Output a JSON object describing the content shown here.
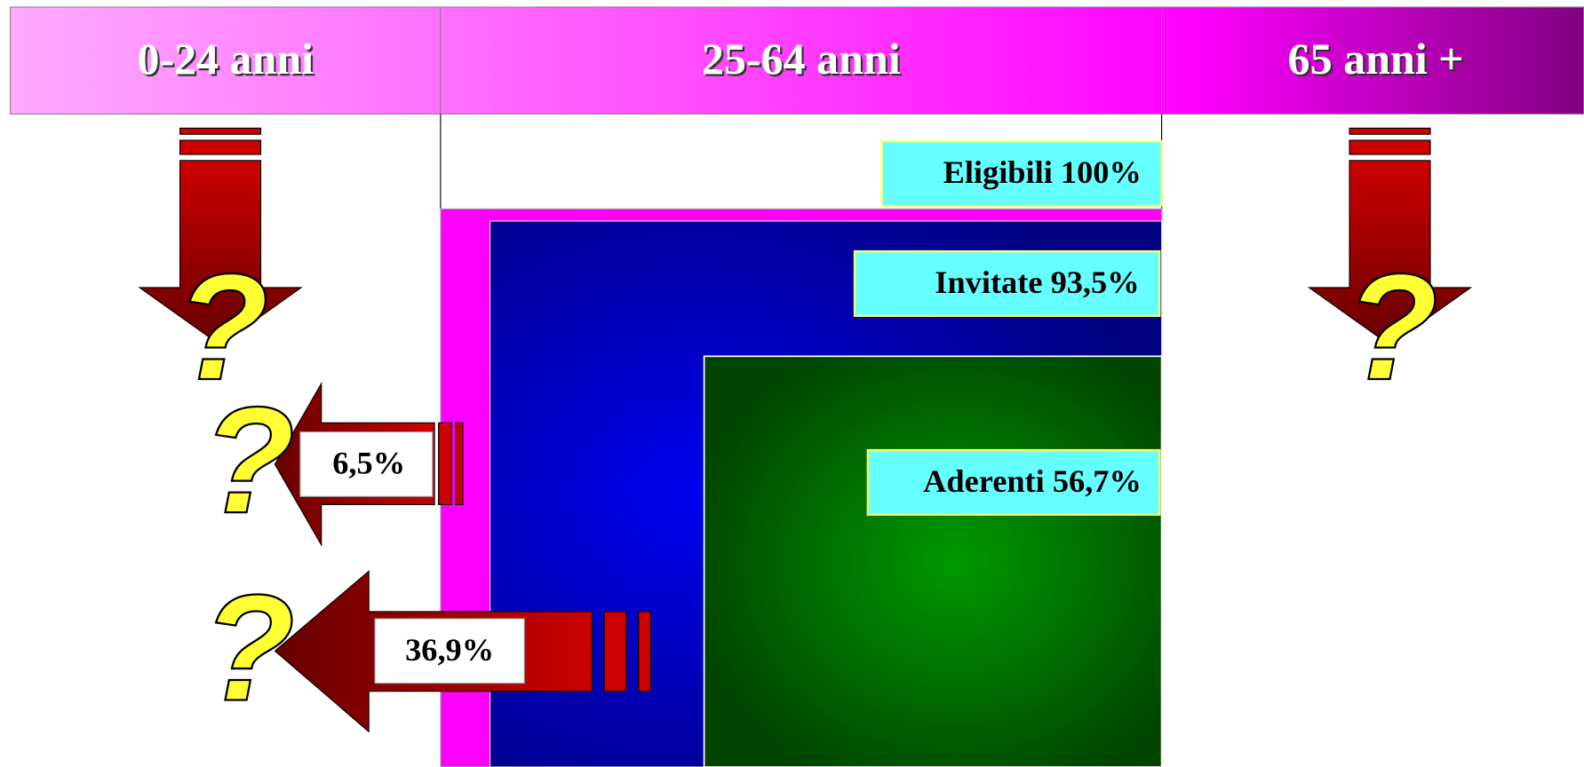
{
  "header": {
    "groups": [
      "0-24 anni",
      "25-64 anni",
      "65 anni +"
    ]
  },
  "boxes": {
    "eligible": "Eligibili 100%",
    "invited": "Invitate 93,5%",
    "adherent": "Aderenti 56,7%"
  },
  "arrows": {
    "not_invited": "6,5%",
    "not_adherent": "36,9%"
  },
  "question_marks": [
    "?",
    "?",
    "?",
    "?"
  ]
}
